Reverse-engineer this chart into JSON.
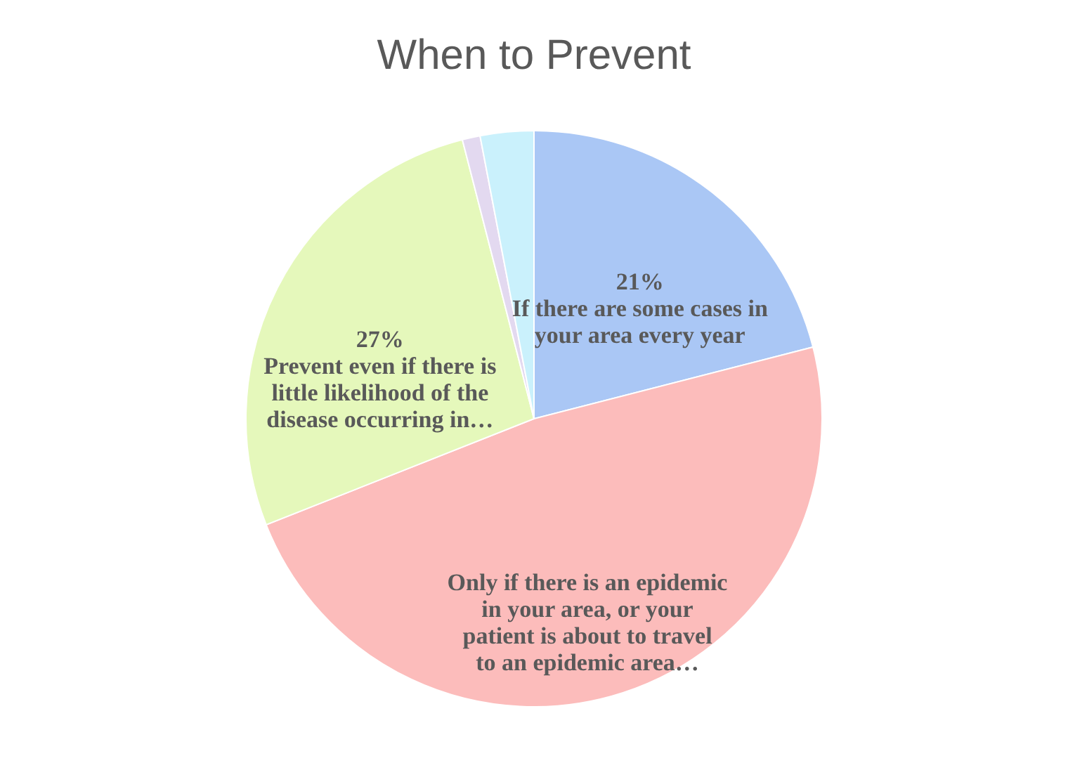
{
  "chart_data": {
    "type": "pie",
    "title": "When to Prevent",
    "categories": [
      "If there are some cases in your area every year",
      "Only if there is an epidemic in your area, or your patient is about to travel to an epidemic area…",
      "Prevent even if there is little likelihood of the disease occurring in…",
      null,
      null
    ],
    "values": [
      21,
      48,
      27,
      1,
      3
    ],
    "value_labels": [
      "21%",
      null,
      "27%",
      null,
      null
    ],
    "colors": [
      "#aac7f5",
      "#fcbcbb",
      "#e5f8bb",
      "#e3d9f0",
      "#caf1fc"
    ],
    "legend": false
  }
}
